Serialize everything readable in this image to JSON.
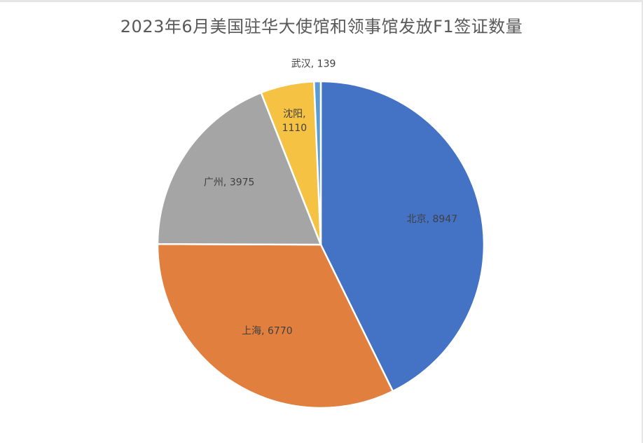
{
  "chart_data": {
    "type": "pie",
    "title": "2023年6月美国驻华大使馆和领事馆发放F1签证数量",
    "slices": [
      {
        "label": "北京",
        "value": 8947,
        "color": "#4472C4"
      },
      {
        "label": "上海",
        "value": 6770,
        "color": "#E07F3E"
      },
      {
        "label": "广州",
        "value": 3975,
        "color": "#A5A5A5"
      },
      {
        "label": "沈阳",
        "value": 1110,
        "color": "#F5C243"
      },
      {
        "label": "武汉",
        "value": 139,
        "color": "#5B9BD5"
      }
    ]
  }
}
